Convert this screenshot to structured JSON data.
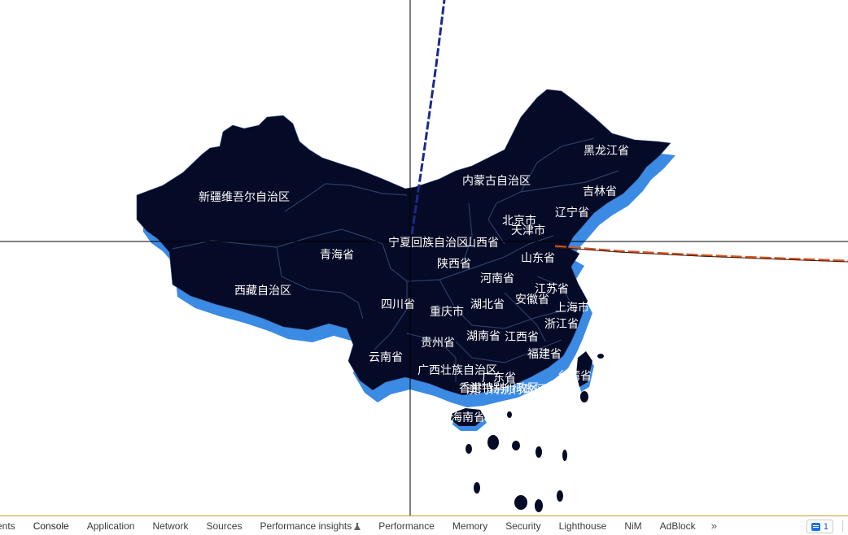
{
  "map": {
    "colors": {
      "land": "#050a26",
      "shadow": "#3b8ae3",
      "border": "#2c3e66",
      "crosshair": "#000000",
      "flight_line_1": "#1c2a8a",
      "flight_line_2": "#d9531e"
    },
    "provinces": [
      {
        "name": "新疆维吾尔自治区"
      },
      {
        "name": "西藏自治区"
      },
      {
        "name": "青海省"
      },
      {
        "name": "内蒙古自治区"
      },
      {
        "name": "黑龙江省"
      },
      {
        "name": "吉林省"
      },
      {
        "name": "辽宁省"
      },
      {
        "name": "北京市"
      },
      {
        "name": "天津市"
      },
      {
        "name": "宁夏回族自治区"
      },
      {
        "name": "山西省"
      },
      {
        "name": "陕西省"
      },
      {
        "name": "山东省"
      },
      {
        "name": "河南省"
      },
      {
        "name": "江苏省"
      },
      {
        "name": "四川省"
      },
      {
        "name": "重庆市"
      },
      {
        "name": "湖北省"
      },
      {
        "name": "安徽省"
      },
      {
        "name": "上海市"
      },
      {
        "name": "浙江省"
      },
      {
        "name": "湖南省"
      },
      {
        "name": "江西省"
      },
      {
        "name": "贵州省"
      },
      {
        "name": "云南省"
      },
      {
        "name": "福建省"
      },
      {
        "name": "广西壮族自治区"
      },
      {
        "name": "广东省"
      },
      {
        "name": "台湾省"
      },
      {
        "name": "香港特别行政区"
      },
      {
        "name": "澳门特别行政区"
      },
      {
        "name": "海南省"
      }
    ]
  },
  "devtools": {
    "tabs": [
      {
        "label": "ents"
      },
      {
        "label": "Console"
      },
      {
        "label": "Application"
      },
      {
        "label": "Network"
      },
      {
        "label": "Sources"
      },
      {
        "label": "Performance insights"
      },
      {
        "label": "Performance"
      },
      {
        "label": "Memory"
      },
      {
        "label": "Security"
      },
      {
        "label": "Lighthouse"
      },
      {
        "label": "NiM"
      },
      {
        "label": "AdBlock"
      }
    ],
    "more_label": "»",
    "issues_count": "1"
  }
}
